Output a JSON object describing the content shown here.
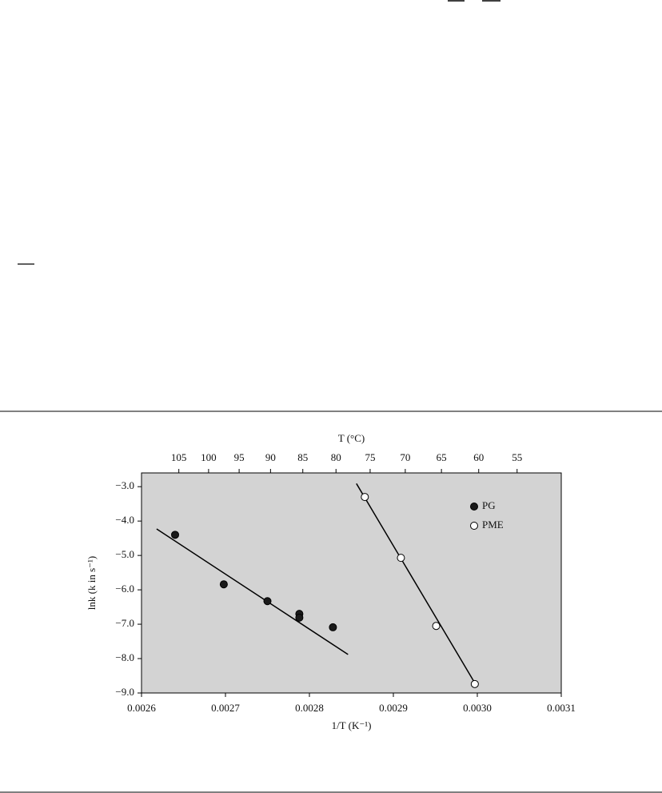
{
  "chart_data": {
    "type": "scatter",
    "xlabel": "1/T (K⁻¹)",
    "ylabel": "lnk (k in s⁻¹)",
    "x2label": "T (°C)",
    "xlim": [
      0.0026,
      0.0031
    ],
    "xticks": [
      0.0026,
      0.0027,
      0.0028,
      0.0029,
      {
        "value": 0.003,
        "label": "0.0030"
      },
      0.0031
    ],
    "ylim": [
      -9.0,
      -2.6
    ],
    "yticks": [
      {
        "value": -3,
        "label": "−3.0"
      },
      {
        "value": -4,
        "label": "−4.0"
      },
      {
        "value": -5,
        "label": "−5.0"
      },
      {
        "value": -6,
        "label": "−6.0"
      },
      {
        "value": -7,
        "label": "−7.0"
      },
      {
        "value": -8,
        "label": "−8.0"
      },
      {
        "value": -9,
        "label": "−9.0"
      }
    ],
    "x2ticks": [
      105,
      100,
      95,
      90,
      85,
      80,
      75,
      70,
      65,
      60,
      55
    ],
    "background": "#d3d3d3",
    "legend": "upper-right",
    "series": [
      {
        "name": "PG",
        "color": "#1a1a1a",
        "marker": "filled",
        "x": [
          0.00264,
          0.002698,
          0.00275,
          0.002788,
          0.002788,
          0.002828
        ],
        "values": [
          -4.4,
          -5.84,
          -6.33,
          -6.7,
          -6.81,
          -7.09
        ],
        "fit": {
          "x": [
            0.002618,
            0.002846
          ],
          "values": [
            -4.23,
            -7.88
          ]
        }
      },
      {
        "name": "PME",
        "color": "#ffffff",
        "marker": "open",
        "x": [
          0.002866,
          0.002909,
          0.002951,
          0.002997
        ],
        "values": [
          -3.3,
          -5.07,
          -7.05,
          -8.74
        ],
        "fit": {
          "x": [
            0.002856,
            0.002999
          ],
          "values": [
            -2.91,
            -8.79
          ]
        }
      }
    ]
  }
}
